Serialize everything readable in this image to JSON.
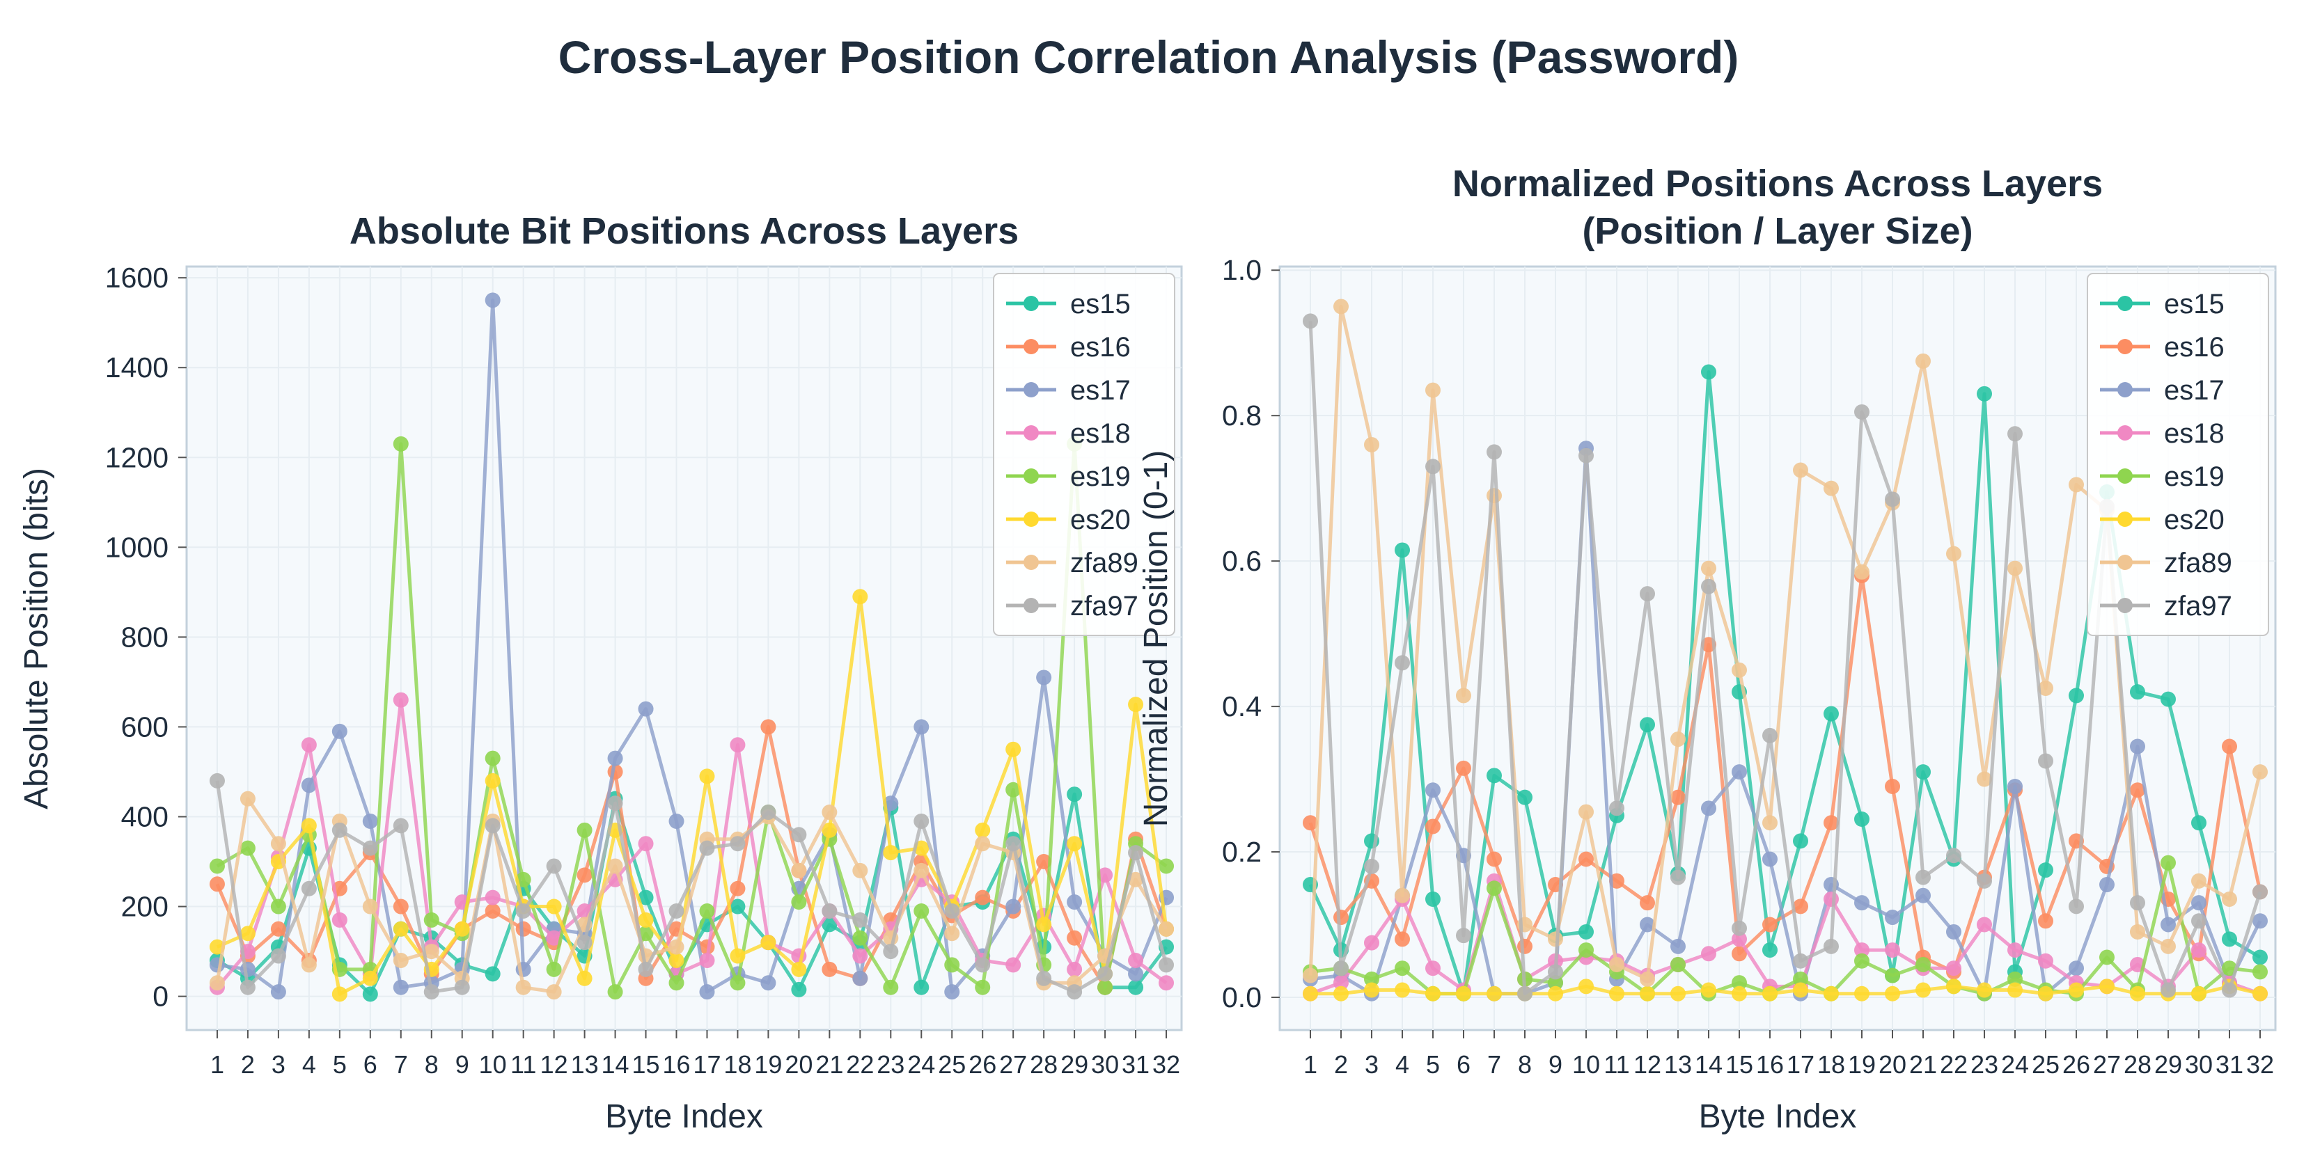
{
  "suptitle": "Cross-Layer Position Correlation Analysis (Password)",
  "colors": {
    "background": "#f5f9fc",
    "grid": "#e6edf2",
    "spine": "#c3d1dc",
    "text": "#1f2d3d",
    "legend_border": "#c8c8c8",
    "series": {
      "es15": "#2bc4a4",
      "es16": "#fc8d62",
      "es17": "#8da0cb",
      "es18": "#f088c3",
      "es19": "#8fd54f",
      "es20": "#ffd92f",
      "zfa89": "#f0c592",
      "zfa97": "#b3b3b3"
    }
  },
  "chart_data": [
    {
      "type": "line",
      "title": "Absolute Bit Positions Across Layers",
      "xlabel": "Byte Index",
      "ylabel": "Absolute Position (bits)",
      "ylim": [
        -75,
        1625
      ],
      "yticks": [
        0,
        200,
        400,
        600,
        800,
        1000,
        1200,
        1400,
        1600
      ],
      "grid": true,
      "legend": "upper right",
      "x": [
        1,
        2,
        3,
        4,
        5,
        6,
        7,
        8,
        9,
        10,
        11,
        12,
        13,
        14,
        15,
        16,
        17,
        18,
        19,
        20,
        21,
        22,
        23,
        24,
        25,
        26,
        27,
        28,
        29,
        30,
        31,
        32
      ],
      "series": [
        {
          "name": "es15",
          "values": [
            80,
            40,
            110,
            330,
            70,
            5,
            150,
            130,
            70,
            50,
            240,
            150,
            90,
            440,
            220,
            50,
            160,
            200,
            120,
            15,
            160,
            120,
            420,
            20,
            200,
            210,
            350,
            110,
            450,
            20,
            20,
            110
          ]
        },
        {
          "name": "es16",
          "values": [
            250,
            90,
            150,
            80,
            240,
            320,
            200,
            50,
            150,
            190,
            150,
            120,
            270,
            500,
            40,
            150,
            110,
            240,
            600,
            280,
            60,
            40,
            170,
            300,
            180,
            220,
            190,
            300,
            130,
            20,
            350,
            150
          ]
        },
        {
          "name": "es17",
          "values": [
            70,
            60,
            10,
            470,
            590,
            390,
            20,
            30,
            60,
            1550,
            60,
            150,
            140,
            530,
            640,
            390,
            10,
            50,
            30,
            240,
            360,
            40,
            430,
            600,
            10,
            90,
            200,
            710,
            210,
            90,
            50,
            220
          ]
        },
        {
          "name": "es18",
          "values": [
            20,
            100,
            310,
            560,
            170,
            50,
            660,
            110,
            210,
            220,
            200,
            130,
            190,
            260,
            340,
            50,
            80,
            560,
            120,
            90,
            190,
            90,
            150,
            260,
            210,
            80,
            70,
            180,
            60,
            270,
            80,
            30
          ]
        },
        {
          "name": "es19",
          "values": [
            290,
            330,
            200,
            360,
            60,
            60,
            1230,
            170,
            140,
            530,
            260,
            60,
            370,
            10,
            140,
            30,
            190,
            30,
            410,
            210,
            350,
            130,
            20,
            190,
            70,
            20,
            460,
            70,
            1230,
            20,
            340,
            290
          ]
        },
        {
          "name": "es20",
          "values": [
            110,
            140,
            300,
            380,
            5,
            40,
            150,
            60,
            150,
            480,
            200,
            200,
            40,
            370,
            170,
            80,
            490,
            90,
            120,
            60,
            370,
            890,
            320,
            330,
            200,
            370,
            550,
            160,
            340,
            50,
            650,
            150
          ]
        },
        {
          "name": "zfa89",
          "values": [
            30,
            440,
            340,
            70,
            390,
            200,
            80,
            100,
            40,
            390,
            20,
            10,
            160,
            290,
            90,
            110,
            350,
            350,
            400,
            280,
            410,
            280,
            130,
            280,
            140,
            340,
            320,
            30,
            30,
            90,
            260,
            150
          ]
        },
        {
          "name": "zfa97",
          "values": [
            480,
            20,
            90,
            240,
            370,
            330,
            380,
            10,
            20,
            380,
            190,
            290,
            120,
            430,
            60,
            190,
            330,
            340,
            410,
            360,
            190,
            170,
            100,
            390,
            190,
            70,
            340,
            40,
            10,
            50,
            320,
            70
          ]
        }
      ]
    },
    {
      "type": "line",
      "title": "Normalized Positions Across Layers\n(Position / Layer Size)",
      "xlabel": "Byte Index",
      "ylabel": "Normalized Position (0-1)",
      "ylim": [
        -0.045,
        1.005
      ],
      "yticks": [
        0.0,
        0.2,
        0.4,
        0.6,
        0.8,
        1.0
      ],
      "grid": true,
      "legend": "upper right",
      "x": [
        1,
        2,
        3,
        4,
        5,
        6,
        7,
        8,
        9,
        10,
        11,
        12,
        13,
        14,
        15,
        16,
        17,
        18,
        19,
        20,
        21,
        22,
        23,
        24,
        25,
        26,
        27,
        28,
        29,
        30,
        31,
        32
      ],
      "series": [
        {
          "name": "es15",
          "values": [
            0.155,
            0.065,
            0.215,
            0.615,
            0.135,
            0.005,
            0.305,
            0.275,
            0.085,
            0.09,
            0.25,
            0.375,
            0.17,
            0.86,
            0.42,
            0.065,
            0.215,
            0.39,
            0.245,
            0.03,
            0.31,
            0.19,
            0.83,
            0.035,
            0.175,
            0.415,
            0.695,
            0.42,
            0.41,
            0.24,
            0.08,
            0.055
          ]
        },
        {
          "name": "es16",
          "values": [
            0.24,
            0.11,
            0.16,
            0.08,
            0.235,
            0.315,
            0.19,
            0.07,
            0.155,
            0.19,
            0.16,
            0.13,
            0.275,
            0.485,
            0.06,
            0.1,
            0.125,
            0.24,
            0.58,
            0.29,
            0.055,
            0.035,
            0.165,
            0.285,
            0.105,
            0.215,
            0.18,
            0.285,
            0.135,
            0.06,
            0.345,
            0.145
          ]
        },
        {
          "name": "es17",
          "values": [
            0.025,
            0.03,
            0.005,
            0.14,
            0.285,
            0.195,
            0.005,
            0.005,
            0.02,
            0.755,
            0.025,
            0.1,
            0.07,
            0.26,
            0.31,
            0.19,
            0.005,
            0.155,
            0.13,
            0.11,
            0.14,
            0.09,
            0.005,
            0.29,
            0.005,
            0.04,
            0.155,
            0.345,
            0.1,
            0.13,
            0.02,
            0.105
          ]
        },
        {
          "name": "es18",
          "values": [
            0.005,
            0.02,
            0.075,
            0.135,
            0.04,
            0.01,
            0.16,
            0.025,
            0.05,
            0.055,
            0.05,
            0.03,
            0.045,
            0.06,
            0.08,
            0.015,
            0.015,
            0.135,
            0.065,
            0.065,
            0.04,
            0.04,
            0.1,
            0.065,
            0.05,
            0.02,
            0.015,
            0.045,
            0.015,
            0.065,
            0.02,
            0.005
          ]
        },
        {
          "name": "es19",
          "values": [
            0.035,
            0.04,
            0.025,
            0.04,
            0.005,
            0.005,
            0.15,
            0.025,
            0.02,
            0.065,
            0.035,
            0.005,
            0.045,
            0.005,
            0.02,
            0.005,
            0.025,
            0.005,
            0.05,
            0.03,
            0.045,
            0.015,
            0.005,
            0.025,
            0.01,
            0.005,
            0.055,
            0.01,
            0.185,
            0.005,
            0.04,
            0.035
          ]
        },
        {
          "name": "es20",
          "values": [
            0.005,
            0.005,
            0.01,
            0.01,
            0.005,
            0.005,
            0.005,
            0.005,
            0.005,
            0.015,
            0.005,
            0.005,
            0.005,
            0.01,
            0.005,
            0.005,
            0.01,
            0.005,
            0.005,
            0.005,
            0.01,
            0.015,
            0.01,
            0.01,
            0.005,
            0.01,
            0.015,
            0.005,
            0.005,
            0.005,
            0.015,
            0.005
          ]
        },
        {
          "name": "zfa89",
          "values": [
            0.03,
            0.95,
            0.76,
            0.14,
            0.835,
            0.415,
            0.69,
            0.1,
            0.08,
            0.255,
            0.045,
            0.025,
            0.355,
            0.59,
            0.45,
            0.24,
            0.725,
            0.7,
            0.585,
            0.68,
            0.875,
            0.61,
            0.3,
            0.59,
            0.425,
            0.705,
            0.67,
            0.09,
            0.07,
            0.16,
            0.135,
            0.31
          ]
        },
        {
          "name": "zfa97",
          "values": [
            0.93,
            0.04,
            0.18,
            0.46,
            0.73,
            0.085,
            0.75,
            0.005,
            0.035,
            0.745,
            0.26,
            0.555,
            0.165,
            0.565,
            0.095,
            0.36,
            0.05,
            0.07,
            0.805,
            0.685,
            0.165,
            0.195,
            0.16,
            0.775,
            0.325,
            0.125,
            0.675,
            0.13,
            0.01,
            0.105,
            0.01,
            0.145
          ]
        }
      ]
    }
  ]
}
